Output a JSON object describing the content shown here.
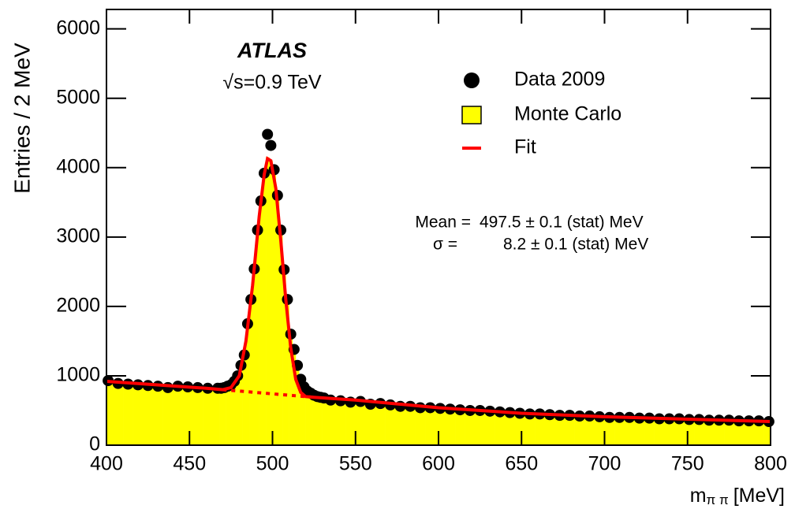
{
  "chart_data": {
    "type": "histogram",
    "xlabel": "m",
    "xlabel_sub": "π π",
    "xlabel_unit": "[MeV]",
    "ylabel": "Entries / 2 MeV",
    "xlim": [
      400,
      800
    ],
    "xticks": [
      400,
      450,
      500,
      550,
      600,
      650,
      700,
      750,
      800
    ],
    "ylim": [
      0,
      6280
    ],
    "yticks": [
      0,
      1000,
      2000,
      3000,
      4000,
      5000,
      6000
    ],
    "annotations": {
      "experiment": "ATLAS",
      "energy": "√s=0.9 TeV",
      "mean_label": "Mean =",
      "mean_value": "497.5 ± 0.1 (stat) MeV",
      "sigma_label": "σ =",
      "sigma_value": "8.2 ± 0.1 (stat) MeV"
    },
    "series": [
      {
        "name": "Data 2009",
        "kind": "points",
        "color": "#000000",
        "x": [
          401,
          407,
          413,
          419,
          425,
          431,
          437,
          443,
          449,
          455,
          461,
          467,
          469,
          471,
          473,
          475,
          477,
          479,
          481,
          483,
          485,
          487,
          489,
          491,
          493,
          495,
          497,
          499,
          501,
          503,
          505,
          507,
          509,
          511,
          513,
          515,
          517,
          519,
          521,
          523,
          525,
          527,
          529,
          531,
          535,
          541,
          547,
          553,
          559,
          565,
          571,
          577,
          583,
          589,
          595,
          601,
          607,
          613,
          619,
          625,
          631,
          637,
          643,
          649,
          655,
          661,
          667,
          673,
          679,
          685,
          691,
          697,
          703,
          709,
          715,
          721,
          727,
          733,
          739,
          745,
          751,
          757,
          763,
          769,
          775,
          781,
          787,
          793,
          799
        ],
        "values": [
          930,
          890,
          880,
          870,
          860,
          850,
          830,
          850,
          840,
          830,
          820,
          820,
          820,
          830,
          850,
          870,
          920,
          1000,
          1150,
          1300,
          1750,
          2100,
          2540,
          3100,
          3520,
          3920,
          4480,
          4320,
          3970,
          3600,
          3100,
          2530,
          2100,
          1600,
          1380,
          1150,
          950,
          840,
          780,
          750,
          720,
          700,
          690,
          680,
          650,
          640,
          620,
          630,
          590,
          600,
          580,
          560,
          560,
          540,
          540,
          530,
          520,
          510,
          500,
          500,
          490,
          480,
          470,
          460,
          450,
          450,
          440,
          430,
          430,
          420,
          420,
          410,
          400,
          400,
          400,
          390,
          390,
          380,
          380,
          380,
          370,
          370,
          360,
          360,
          360,
          350,
          350,
          350,
          340
        ]
      },
      {
        "name": "Monte Carlo",
        "kind": "histogram",
        "color": "#ffff00",
        "x": [
          401,
          407,
          413,
          419,
          425,
          431,
          437,
          443,
          449,
          455,
          461,
          467,
          469,
          471,
          473,
          475,
          477,
          479,
          481,
          483,
          485,
          487,
          489,
          491,
          493,
          495,
          497,
          499,
          501,
          503,
          505,
          507,
          509,
          511,
          513,
          515,
          517,
          519,
          521,
          523,
          525,
          527,
          529,
          531,
          535,
          541,
          547,
          553,
          559,
          565,
          571,
          577,
          583,
          589,
          595,
          601,
          607,
          613,
          619,
          625,
          631,
          637,
          643,
          649,
          655,
          661,
          667,
          673,
          679,
          685,
          691,
          697,
          703,
          709,
          715,
          721,
          727,
          733,
          739,
          745,
          751,
          757,
          763,
          769,
          775,
          781,
          787,
          793,
          799
        ],
        "values": [
          910,
          890,
          870,
          860,
          850,
          840,
          830,
          830,
          830,
          820,
          810,
          810,
          810,
          820,
          840,
          860,
          900,
          980,
          1120,
          1300,
          1700,
          2080,
          2500,
          3050,
          3450,
          3850,
          4150,
          4100,
          3900,
          3550,
          3050,
          2500,
          2050,
          1600,
          1350,
          1130,
          940,
          830,
          770,
          740,
          710,
          690,
          680,
          670,
          650,
          630,
          620,
          610,
          590,
          590,
          570,
          560,
          550,
          540,
          530,
          520,
          510,
          500,
          495,
          490,
          480,
          470,
          460,
          455,
          450,
          440,
          435,
          430,
          425,
          420,
          415,
          410,
          400,
          395,
          390,
          385,
          380,
          380,
          375,
          370,
          365,
          365,
          360,
          355,
          350,
          350,
          345,
          340,
          340
        ]
      },
      {
        "name": "Fit",
        "kind": "line",
        "color": "#ff0000",
        "x": [
          400,
          430,
          460,
          470,
          475,
          480,
          484,
          488,
          492,
          495,
          497,
          499,
          502,
          505,
          508,
          511,
          514,
          517,
          520,
          525,
          550,
          600,
          650,
          700,
          750,
          800
        ],
        "values": [
          920,
          870,
          820,
          800,
          830,
          1000,
          1500,
          2300,
          3300,
          3900,
          4130,
          4100,
          3700,
          2950,
          2100,
          1400,
          950,
          760,
          700,
          690,
          650,
          540,
          460,
          410,
          375,
          340
        ]
      }
    ],
    "background_fit": {
      "color": "#ff0000",
      "x": [
        470,
        500,
        525
      ],
      "values": [
        800,
        740,
        690
      ]
    }
  }
}
